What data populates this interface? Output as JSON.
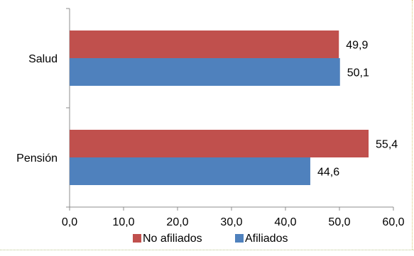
{
  "chart_data": {
    "type": "bar",
    "orientation": "horizontal",
    "categories": [
      "Salud",
      "Pensión"
    ],
    "series": [
      {
        "name": "No afiliados",
        "values": [
          49.9,
          55.4
        ],
        "value_labels": [
          "49,9",
          "55,4"
        ],
        "color": "#c0504d"
      },
      {
        "name": "Afiliados",
        "values": [
          50.1,
          44.6
        ],
        "value_labels": [
          "50,1",
          "44,6"
        ],
        "color": "#4f81bd"
      }
    ],
    "xlim": [
      0,
      60
    ],
    "x_ticks": [
      0,
      10,
      20,
      30,
      40,
      50,
      60
    ],
    "x_tick_labels": [
      "0,0",
      "10,0",
      "20,0",
      "30,0",
      "40,0",
      "50,0",
      "60,0"
    ],
    "grid": false,
    "legend_position": "bottom"
  }
}
